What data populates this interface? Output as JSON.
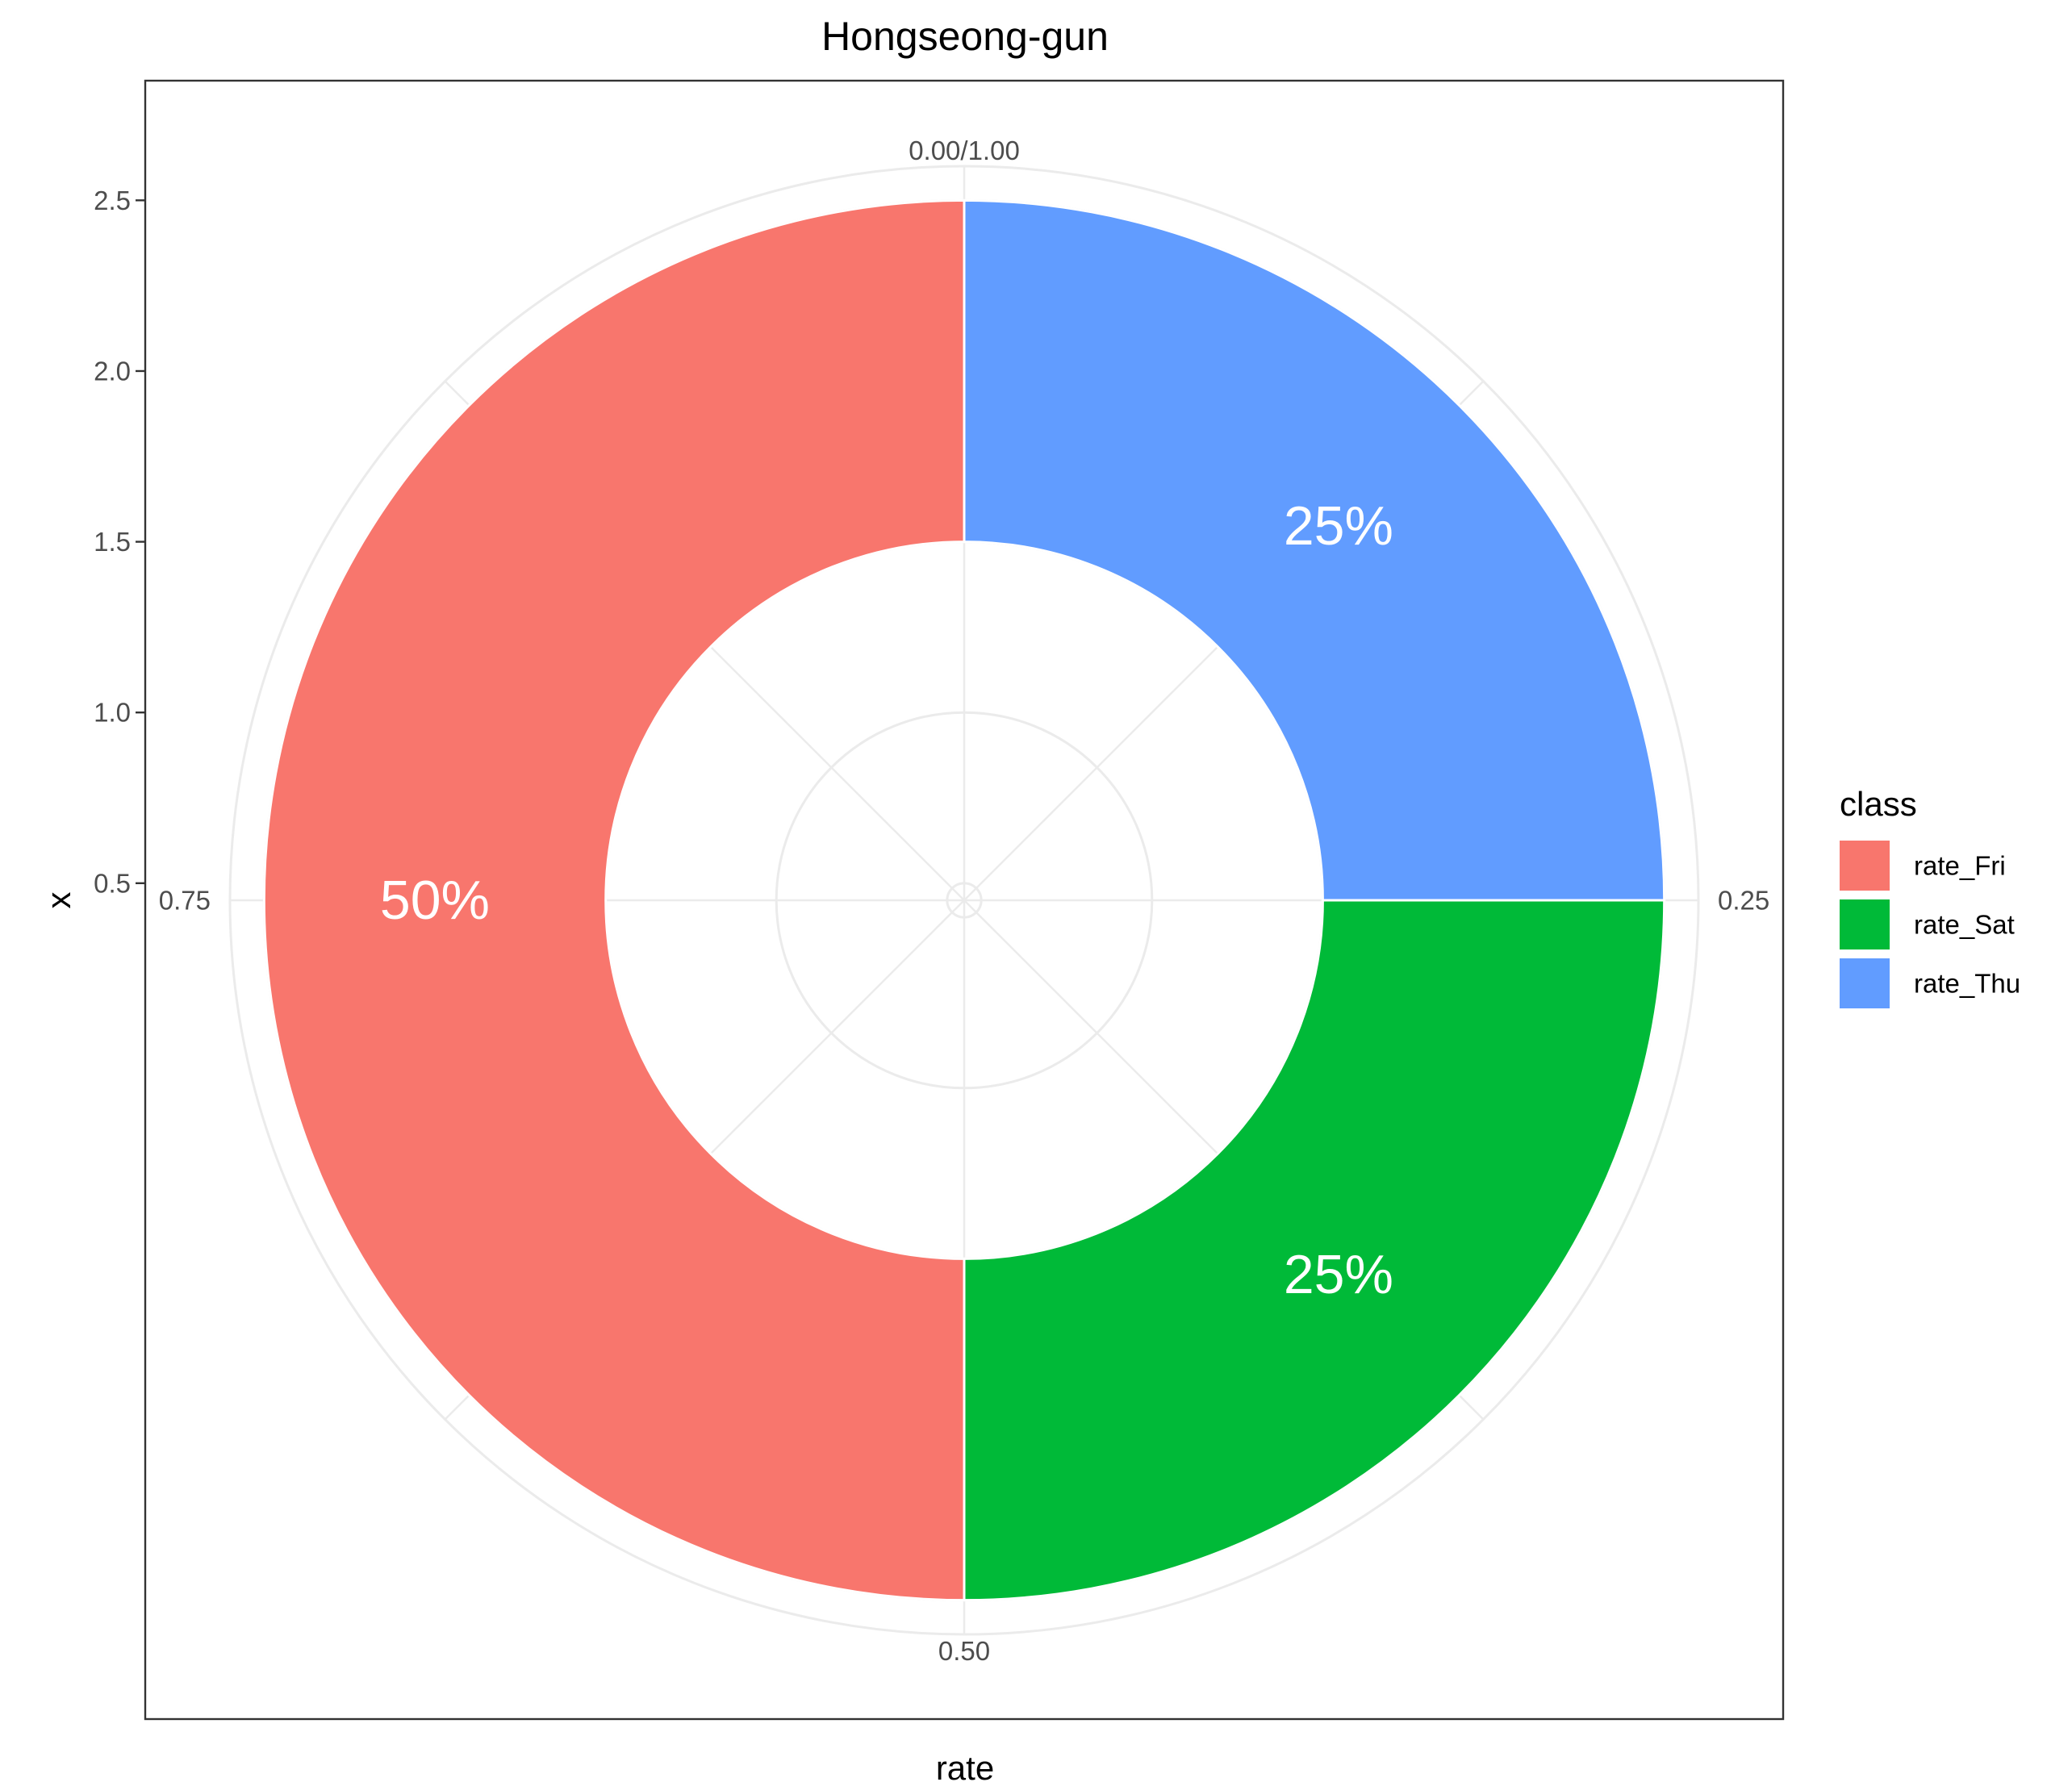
{
  "chart_data": {
    "type": "pie",
    "subtype": "donut",
    "title": "Hongseong-gun",
    "xlabel": "rate",
    "ylabel": "x",
    "categories": [
      "rate_Fri",
      "rate_Sat",
      "rate_Thu"
    ],
    "values": [
      0.5,
      0.25,
      0.25
    ],
    "labels": [
      "50%",
      "25%",
      "25%"
    ],
    "colors": [
      "#F8766D",
      "#00BA38",
      "#619CFF"
    ],
    "radial_axis": {
      "ticks": [
        "0.5",
        "1.0",
        "1.5",
        "2.0",
        "2.5"
      ],
      "tick_values": [
        0.5,
        1.0,
        1.5,
        2.0,
        2.5
      ],
      "range": [
        0.45,
        2.6
      ],
      "bar_inner": 1.5,
      "bar_outer": 2.5
    },
    "theta_axis": {
      "ticks": [
        "0.00/1.00",
        "0.25",
        "0.50",
        "0.75"
      ],
      "tick_values": [
        0,
        0.25,
        0.5,
        0.75
      ]
    },
    "legend": {
      "title": "class",
      "position": "right"
    },
    "grid": true
  }
}
